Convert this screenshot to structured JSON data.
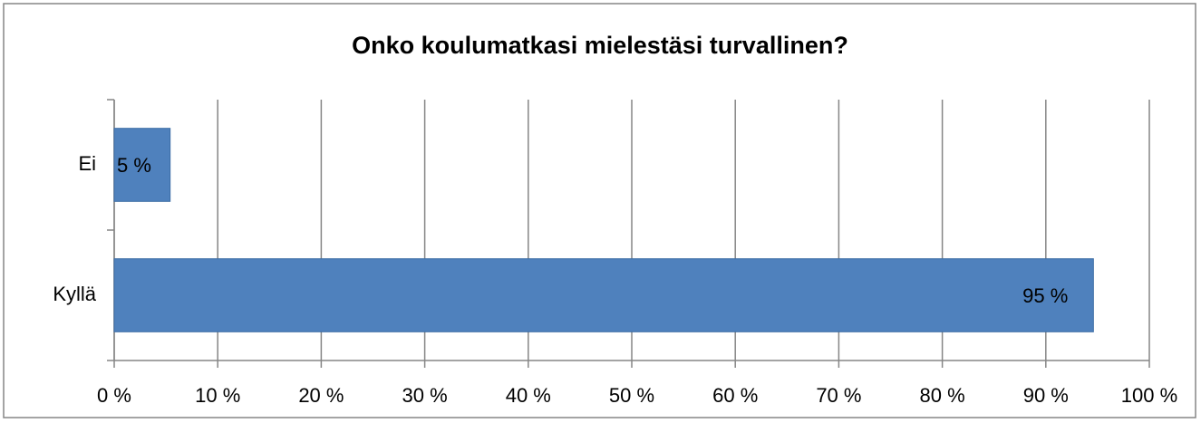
{
  "chart_data": {
    "type": "barh",
    "title": "Onko koulumatkasi mielestäsi turvallinen?",
    "categories": [
      "Ei",
      "Kyllä"
    ],
    "values": [
      5.4,
      94.6
    ],
    "value_labels": [
      "5 %",
      "95 %"
    ],
    "color": "#4f81bd",
    "xlim": [
      0,
      100
    ],
    "xticks": [
      {
        "value": 0,
        "label": "0 %"
      },
      {
        "value": 10,
        "label": "10 %"
      },
      {
        "value": 20,
        "label": "20 %"
      },
      {
        "value": 30,
        "label": "30 %"
      },
      {
        "value": 40,
        "label": "40 %"
      },
      {
        "value": 50,
        "label": "50 %"
      },
      {
        "value": 60,
        "label": "60 %"
      },
      {
        "value": 70,
        "label": "70 %"
      },
      {
        "value": 80,
        "label": "80 %"
      },
      {
        "value": 90,
        "label": "90 %"
      },
      {
        "value": 100,
        "label": "100 %"
      }
    ],
    "grid": true
  }
}
